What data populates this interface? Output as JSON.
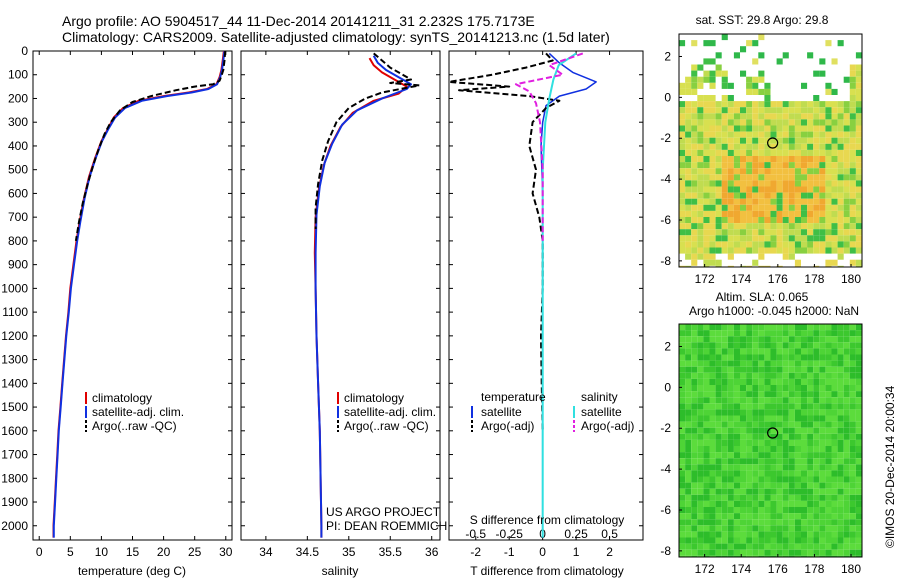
{
  "header": {
    "line1": "Argo profile: AO 5904517_44 11-Dec-2014 20141211_31 2.232S 175.7173E",
    "line2": "Climatology: CARS2009. Satellite-adjusted climatology: synTS_20141213.nc (1.5d later)"
  },
  "colors": {
    "climatology": "#e00000",
    "satellite": "#1030e0",
    "argo": "#000000",
    "salinity_sat": "#30e0e0",
    "salinity_argo": "#e020e0"
  },
  "chart_data": [
    {
      "type": "line",
      "id": "temperature",
      "xlabel": "temperature (deg C)",
      "ylabel": "",
      "xlim": [
        -1,
        31
      ],
      "ylim": [
        0,
        2060
      ],
      "y_inverted": true,
      "x_ticks": [
        "0",
        "5",
        "10",
        "15",
        "20",
        "25",
        "30"
      ],
      "y_ticks": [
        "0",
        "100",
        "200",
        "300",
        "400",
        "500",
        "600",
        "700",
        "800",
        "900",
        "1000",
        "1100",
        "1200",
        "1300",
        "1400",
        "1500",
        "1600",
        "1700",
        "1800",
        "1900",
        "2000"
      ],
      "legend": [
        "climatology",
        "satellite-adj. clim.",
        "Argo(..raw -QC)"
      ],
      "series": [
        {
          "name": "climatology",
          "color": "#e00000",
          "dash": "",
          "width": 2,
          "points": [
            [
              29.7,
              0
            ],
            [
              29.5,
              40
            ],
            [
              29.3,
              80
            ],
            [
              29,
              110
            ],
            [
              28.5,
              140
            ],
            [
              27,
              160
            ],
            [
              24,
              175
            ],
            [
              20,
              190
            ],
            [
              16,
              210
            ],
            [
              13.5,
              240
            ],
            [
              12,
              280
            ],
            [
              11,
              330
            ],
            [
              10,
              380
            ],
            [
              9,
              450
            ],
            [
              8,
              530
            ],
            [
              7.2,
              620
            ],
            [
              6.5,
              720
            ],
            [
              6,
              800
            ],
            [
              5.5,
              900
            ],
            [
              5,
              1000
            ],
            [
              4.7,
              1100
            ],
            [
              4.3,
              1200
            ],
            [
              4,
              1300
            ],
            [
              3.7,
              1400
            ],
            [
              3.4,
              1500
            ],
            [
              3.1,
              1600
            ],
            [
              2.9,
              1700
            ],
            [
              2.7,
              1800
            ],
            [
              2.5,
              1900
            ],
            [
              2.3,
              2000
            ],
            [
              2.3,
              2050
            ]
          ]
        },
        {
          "name": "satellite-adj. clim.",
          "color": "#1030e0",
          "dash": "",
          "width": 2,
          "points": [
            [
              29.8,
              0
            ],
            [
              29.6,
              40
            ],
            [
              29.4,
              80
            ],
            [
              29.1,
              110
            ],
            [
              28.6,
              140
            ],
            [
              27.2,
              160
            ],
            [
              24.5,
              175
            ],
            [
              20.5,
              190
            ],
            [
              16.5,
              210
            ],
            [
              13.8,
              240
            ],
            [
              12.2,
              280
            ],
            [
              11.1,
              330
            ],
            [
              10.1,
              380
            ],
            [
              9.1,
              450
            ],
            [
              8.1,
              530
            ],
            [
              7.3,
              620
            ],
            [
              6.6,
              720
            ],
            [
              6.1,
              800
            ],
            [
              5.6,
              900
            ],
            [
              5.1,
              1000
            ],
            [
              4.75,
              1100
            ],
            [
              4.35,
              1200
            ],
            [
              4.05,
              1300
            ],
            [
              3.75,
              1400
            ],
            [
              3.45,
              1500
            ],
            [
              3.15,
              1600
            ],
            [
              2.95,
              1700
            ],
            [
              2.75,
              1800
            ],
            [
              2.55,
              1900
            ],
            [
              2.35,
              2000
            ],
            [
              2.35,
              2050
            ]
          ]
        },
        {
          "name": "Argo(..raw -QC)",
          "color": "#000000",
          "dash": "6,3",
          "width": 2,
          "points": [
            [
              29.9,
              0
            ],
            [
              29.8,
              40
            ],
            [
              29.6,
              80
            ],
            [
              29.3,
              105
            ],
            [
              29,
              125
            ],
            [
              28,
              140
            ],
            [
              25,
              150
            ],
            [
              22,
              165
            ],
            [
              18,
              190
            ],
            [
              15,
              215
            ],
            [
              13,
              250
            ],
            [
              11.5,
              300
            ],
            [
              10.5,
              350
            ],
            [
              9.6,
              410
            ],
            [
              8.7,
              480
            ],
            [
              7.8,
              560
            ],
            [
              7,
              640
            ],
            [
              6.4,
              720
            ],
            [
              5.9,
              800
            ]
          ]
        }
      ]
    },
    {
      "type": "line",
      "id": "salinity",
      "xlabel": "salinity",
      "xlim": [
        33.7,
        36.1
      ],
      "ylim": [
        0,
        2060
      ],
      "y_inverted": true,
      "x_ticks": [
        "34",
        "34.5",
        "35",
        "35.5",
        "36"
      ],
      "legend": [
        "climatology",
        "satellite-adj. clim.",
        "Argo(..raw -QC)"
      ],
      "annotation": [
        "US ARGO PROJECT",
        "PI: DEAN ROEMMICH"
      ],
      "series": [
        {
          "name": "climatology",
          "color": "#e00000",
          "dash": "",
          "width": 2,
          "points": [
            [
              35.25,
              30
            ],
            [
              35.3,
              60
            ],
            [
              35.4,
              90
            ],
            [
              35.55,
              120
            ],
            [
              35.7,
              150
            ],
            [
              35.6,
              180
            ],
            [
              35.3,
              210
            ],
            [
              35.05,
              260
            ],
            [
              34.9,
              320
            ],
            [
              34.78,
              400
            ],
            [
              34.7,
              480
            ],
            [
              34.64,
              580
            ],
            [
              34.6,
              700
            ],
            [
              34.59,
              850
            ],
            [
              34.6,
              1000
            ],
            [
              34.61,
              1200
            ],
            [
              34.63,
              1400
            ],
            [
              34.65,
              1600
            ],
            [
              34.66,
              1800
            ],
            [
              34.67,
              2000
            ],
            [
              34.67,
              2050
            ]
          ]
        },
        {
          "name": "satellite-adj. clim.",
          "color": "#1030e0",
          "dash": "",
          "width": 2,
          "points": [
            [
              35.3,
              20
            ],
            [
              35.35,
              50
            ],
            [
              35.45,
              80
            ],
            [
              35.6,
              110
            ],
            [
              35.75,
              140
            ],
            [
              35.7,
              160
            ],
            [
              35.4,
              200
            ],
            [
              35.1,
              250
            ],
            [
              34.92,
              310
            ],
            [
              34.8,
              390
            ],
            [
              34.71,
              470
            ],
            [
              34.65,
              570
            ],
            [
              34.61,
              690
            ],
            [
              34.6,
              850
            ],
            [
              34.6,
              1000
            ],
            [
              34.61,
              1200
            ],
            [
              34.63,
              1400
            ],
            [
              34.65,
              1600
            ],
            [
              34.66,
              1800
            ],
            [
              34.67,
              2000
            ],
            [
              34.67,
              2050
            ]
          ]
        },
        {
          "name": "Argo(..raw -QC)",
          "color": "#000000",
          "dash": "6,3",
          "width": 2,
          "points": [
            [
              35.3,
              10
            ],
            [
              35.4,
              40
            ],
            [
              35.5,
              70
            ],
            [
              35.65,
              100
            ],
            [
              35.75,
              120
            ],
            [
              35.5,
              135
            ],
            [
              35.85,
              145
            ],
            [
              35.4,
              175
            ],
            [
              35.2,
              200
            ],
            [
              35,
              240
            ],
            [
              34.85,
              300
            ],
            [
              34.75,
              380
            ],
            [
              34.68,
              460
            ],
            [
              34.63,
              560
            ],
            [
              34.6,
              660
            ],
            [
              34.6,
              750
            ]
          ]
        }
      ]
    },
    {
      "type": "line",
      "id": "differences",
      "xlabel": "T difference from climatology",
      "xlabel_top": "S difference from climatology",
      "xlim": [
        -2.8,
        3
      ],
      "ylim": [
        0,
        2060
      ],
      "y_inverted": true,
      "x_ticks": [
        "-2",
        "-1",
        "0",
        "1",
        "2"
      ],
      "top_ticks": [
        "-0.5",
        "-0.25",
        "0",
        "0.25",
        "0.5"
      ],
      "legend_groups": [
        {
          "title": "temperature",
          "items": [
            "satellite",
            "Argo(-adj)"
          ]
        },
        {
          "title": "salinity",
          "items": [
            "satellite",
            "Argo(-adj)"
          ]
        }
      ],
      "series": [
        {
          "name": "satellite",
          "group": "temperature",
          "color": "#1030e0",
          "dash": "",
          "width": 1.5,
          "points": [
            [
              0.2,
              10
            ],
            [
              0.5,
              50
            ],
            [
              0.9,
              90
            ],
            [
              1.6,
              130
            ],
            [
              1.3,
              160
            ],
            [
              0.5,
              190
            ],
            [
              0.1,
              230
            ],
            [
              0,
              300
            ],
            [
              -0.05,
              400
            ],
            [
              0,
              600
            ],
            [
              0,
              800
            ],
            [
              0,
              1000
            ],
            [
              0,
              1200
            ],
            [
              0,
              1500
            ],
            [
              0,
              1800
            ],
            [
              0,
              2000
            ],
            [
              0,
              2050
            ]
          ]
        },
        {
          "name": "Argo(-adj)",
          "group": "temperature",
          "color": "#000000",
          "dash": "6,3",
          "width": 2,
          "points": [
            [
              0.1,
              10
            ],
            [
              0.3,
              40
            ],
            [
              -0.5,
              70
            ],
            [
              -1.5,
              100
            ],
            [
              -2.8,
              130
            ],
            [
              -1,
              150
            ],
            [
              -2.5,
              165
            ],
            [
              -0.4,
              190
            ],
            [
              0.5,
              210
            ],
            [
              0.1,
              240
            ],
            [
              -0.3,
              300
            ],
            [
              -0.4,
              400
            ],
            [
              -0.2,
              500
            ],
            [
              -0.3,
              600
            ],
            [
              -0.1,
              700
            ],
            [
              0,
              800
            ],
            [
              0,
              1000
            ],
            [
              -0.05,
              1200
            ],
            [
              -0.03,
              1400
            ],
            [
              0,
              1600
            ]
          ]
        },
        {
          "name": "satellite",
          "group": "salinity",
          "color": "#30e0e0",
          "dash": "",
          "width": 2,
          "points": [
            [
              0.25,
              10
            ],
            [
              0.12,
              60
            ],
            [
              0.08,
              120
            ],
            [
              0.05,
              200
            ],
            [
              0.02,
              300
            ],
            [
              0,
              500
            ],
            [
              0,
              800
            ],
            [
              0,
              1200
            ],
            [
              0,
              1600
            ],
            [
              0,
              2050
            ]
          ]
        },
        {
          "name": "Argo(-adj)",
          "group": "salinity",
          "color": "#e020e0",
          "dash": "6,3",
          "width": 2,
          "points": [
            [
              0.3,
              10
            ],
            [
              0.05,
              60
            ],
            [
              0.15,
              100
            ],
            [
              -0.2,
              140
            ],
            [
              -0.1,
              170
            ],
            [
              -0.05,
              220
            ],
            [
              -0.02,
              300
            ],
            [
              0,
              500
            ],
            [
              0,
              800
            ]
          ]
        }
      ]
    },
    {
      "type": "heatmap",
      "id": "sst_map",
      "title": "sat. SST: 29.8 Argo: 29.8",
      "xlim": [
        170.6,
        180.6
      ],
      "ylim": [
        -8.3,
        3.1
      ],
      "x_ticks": [
        "172",
        "174",
        "176",
        "178",
        "180"
      ],
      "y_ticks": [
        "2",
        "0",
        "-2",
        "-4",
        "-6",
        "-8"
      ],
      "marker": {
        "lon": 175.7173,
        "lat": -2.232
      }
    },
    {
      "type": "heatmap",
      "id": "sla_map",
      "title_lines": [
        "Altim. SLA: 0.065",
        "Argo h1000: -0.045 h2000: NaN"
      ],
      "xlim": [
        170.6,
        180.6
      ],
      "ylim": [
        -8.3,
        3.1
      ],
      "x_ticks": [
        "172",
        "174",
        "176",
        "178",
        "180"
      ],
      "y_ticks": [
        "2",
        "0",
        "-2",
        "-4",
        "-6",
        "-8"
      ],
      "marker": {
        "lon": 175.7173,
        "lat": -2.232
      }
    }
  ],
  "footer": {
    "credit": "©IMOS 20-Dec-2014 20:00:34"
  }
}
